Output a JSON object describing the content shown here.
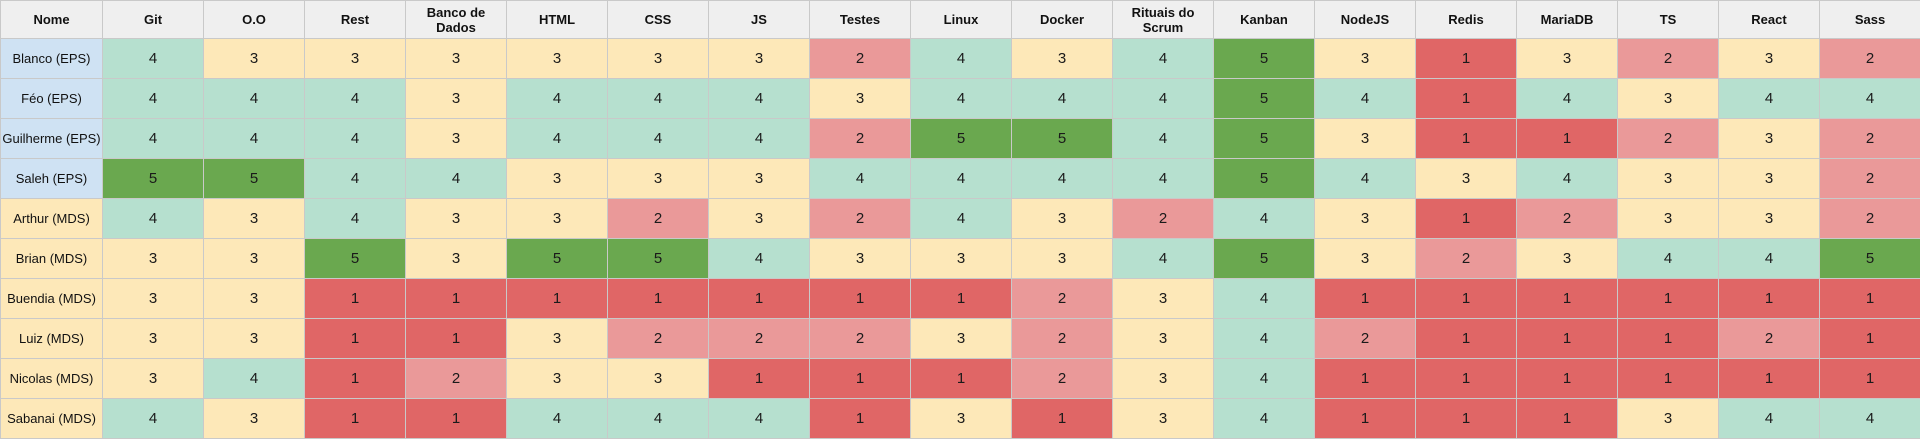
{
  "columns": [
    "Nome",
    "Git",
    "O.O",
    "Rest",
    "Banco de Dados",
    "HTML",
    "CSS",
    "JS",
    "Testes",
    "Linux",
    "Docker",
    "Rituais do Scrum",
    "Kanban",
    "NodeJS",
    "Redis",
    "MariaDB",
    "TS",
    "React",
    "Sass"
  ],
  "rows": [
    {
      "name": "Blanco (EPS)",
      "group": "EPS",
      "scores": [
        4,
        3,
        3,
        3,
        3,
        3,
        3,
        2,
        4,
        3,
        4,
        5,
        3,
        1,
        3,
        2,
        3,
        2
      ]
    },
    {
      "name": "Féo (EPS)",
      "group": "EPS",
      "scores": [
        4,
        4,
        4,
        3,
        4,
        4,
        4,
        3,
        4,
        4,
        4,
        5,
        4,
        1,
        4,
        3,
        4,
        4
      ]
    },
    {
      "name": "Guilherme (EPS)",
      "group": "EPS",
      "scores": [
        4,
        4,
        4,
        3,
        4,
        4,
        4,
        2,
        5,
        5,
        4,
        5,
        3,
        1,
        1,
        2,
        3,
        2
      ]
    },
    {
      "name": "Saleh (EPS)",
      "group": "EPS",
      "scores": [
        5,
        5,
        4,
        4,
        3,
        3,
        3,
        4,
        4,
        4,
        4,
        5,
        4,
        3,
        4,
        3,
        3,
        2
      ]
    },
    {
      "name": "Arthur (MDS)",
      "group": "MDS",
      "scores": [
        4,
        3,
        4,
        3,
        3,
        2,
        3,
        2,
        4,
        3,
        2,
        4,
        3,
        1,
        2,
        3,
        3,
        2
      ]
    },
    {
      "name": "Brian (MDS)",
      "group": "MDS",
      "scores": [
        3,
        3,
        5,
        3,
        5,
        5,
        4,
        3,
        3,
        3,
        4,
        5,
        3,
        2,
        3,
        4,
        4,
        5
      ]
    },
    {
      "name": "Buendia (MDS)",
      "group": "MDS",
      "scores": [
        3,
        3,
        1,
        1,
        1,
        1,
        1,
        1,
        1,
        2,
        3,
        4,
        1,
        1,
        1,
        1,
        1,
        1
      ]
    },
    {
      "name": "Luiz (MDS)",
      "group": "MDS",
      "scores": [
        3,
        3,
        1,
        1,
        3,
        2,
        2,
        2,
        3,
        2,
        3,
        4,
        2,
        1,
        1,
        1,
        2,
        1
      ]
    },
    {
      "name": "Nicolas (MDS)",
      "group": "MDS",
      "scores": [
        3,
        4,
        1,
        2,
        3,
        3,
        1,
        1,
        1,
        2,
        3,
        4,
        1,
        1,
        1,
        1,
        1,
        1
      ]
    },
    {
      "name": "Sabanai (MDS)",
      "group": "MDS",
      "scores": [
        4,
        3,
        1,
        1,
        4,
        4,
        4,
        1,
        3,
        1,
        3,
        4,
        1,
        1,
        1,
        3,
        4,
        4
      ]
    }
  ],
  "colors": {
    "score_1": "#e06666",
    "score_2": "#ea9999",
    "score_3": "#fde8b8",
    "score_4": "#b6e0cf",
    "score_5": "#6aa84f",
    "name_eps": "#cfe2f3",
    "name_mds": "#fde8b8",
    "header": "#efefef",
    "grid": "#c9c9c9"
  }
}
